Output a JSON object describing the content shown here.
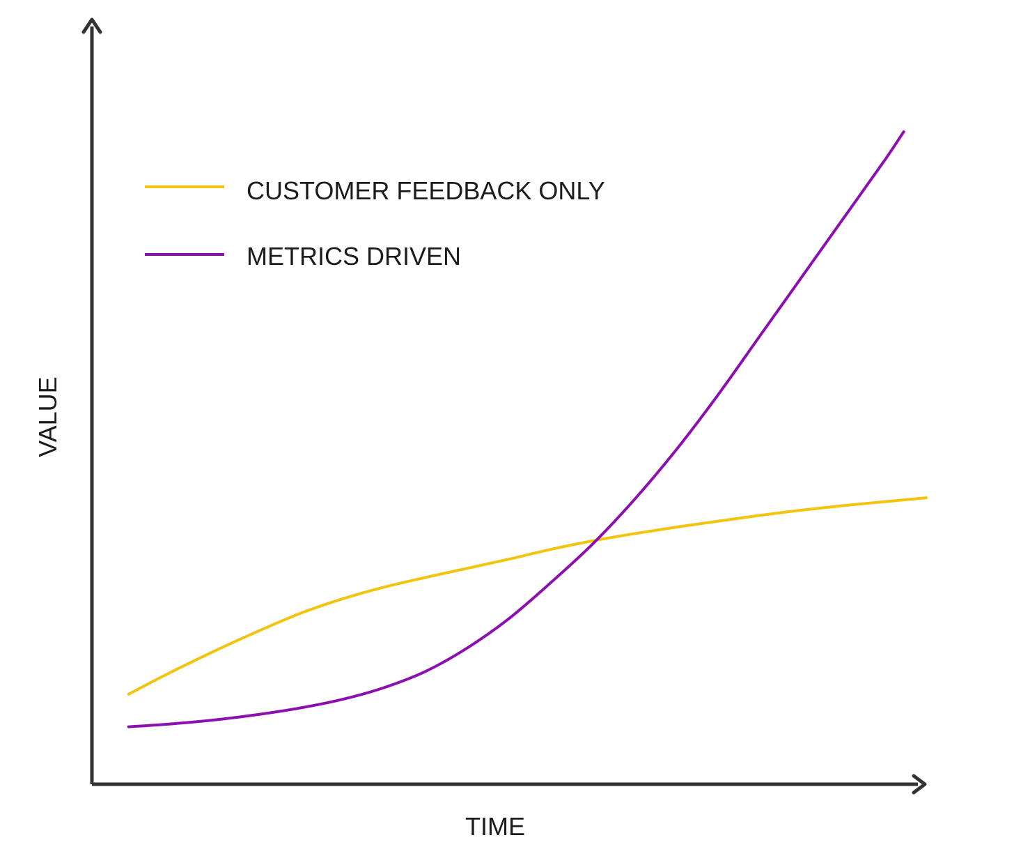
{
  "chart_data": {
    "type": "line",
    "xlabel": "TIME",
    "ylabel": "VALUE",
    "axis_color": "#333333",
    "tick_labels_shown": false,
    "grid": false,
    "legend_position": "top-left",
    "xlim": [
      0,
      1
    ],
    "ylim": [
      0,
      1
    ],
    "series": [
      {
        "name": "CUSTOMER FEEDBACK ONLY",
        "color": "#F2C40E",
        "x": [
          0.044,
          0.092,
          0.15,
          0.2,
          0.25,
          0.3,
          0.35,
          0.4,
          0.45,
          0.5,
          0.55,
          0.6,
          0.65,
          0.7,
          0.75,
          0.8,
          0.85,
          0.9,
          0.95,
          1.0
        ],
        "values": [
          0.138,
          0.17,
          0.206,
          0.235,
          0.262,
          0.284,
          0.302,
          0.317,
          0.331,
          0.345,
          0.36,
          0.373,
          0.384,
          0.394,
          0.403,
          0.412,
          0.42,
          0.427,
          0.433,
          0.439
        ]
      },
      {
        "name": "METRICS DRIVEN",
        "color": "#8C0FB0",
        "x": [
          0.044,
          0.1,
          0.15,
          0.2,
          0.25,
          0.3,
          0.35,
          0.4,
          0.45,
          0.5,
          0.55,
          0.6,
          0.65,
          0.7,
          0.75,
          0.8,
          0.85,
          0.9,
          0.95,
          0.973
        ],
        "values": [
          0.088,
          0.093,
          0.099,
          0.107,
          0.117,
          0.13,
          0.148,
          0.173,
          0.209,
          0.254,
          0.309,
          0.368,
          0.436,
          0.512,
          0.596,
          0.686,
          0.776,
          0.866,
          0.956,
          1.0
        ]
      }
    ]
  }
}
